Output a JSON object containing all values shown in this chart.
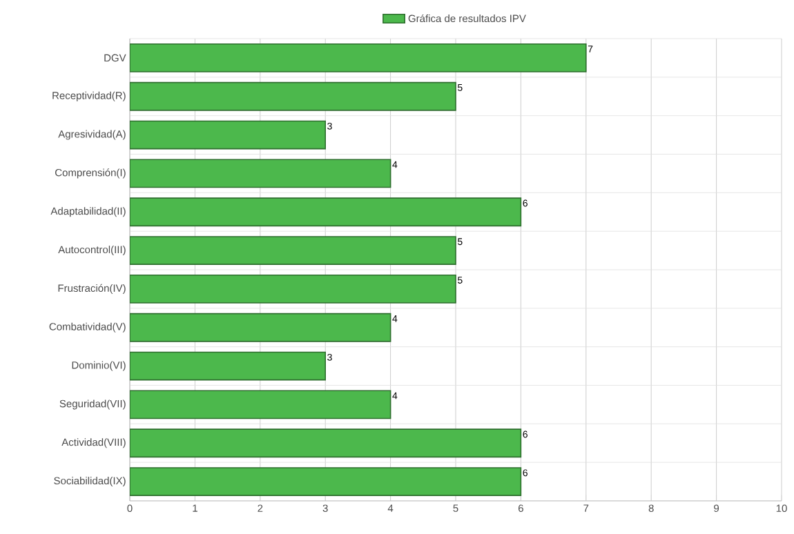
{
  "chart_data": {
    "type": "bar",
    "orientation": "horizontal",
    "categories": [
      "DGV",
      "Receptividad(R)",
      "Agresividad(A)",
      "Comprensión(I)",
      "Adaptabilidad(II)",
      "Autocontrol(III)",
      "Frustración(IV)",
      "Combatividad(V)",
      "Dominio(VI)",
      "Seguridad(VII)",
      "Actividad(VIII)",
      "Sociabilidad(IX)"
    ],
    "series": [
      {
        "name": "Gráfica de resultados IPV",
        "color": "#4cb84c",
        "values": [
          7,
          5,
          3,
          4,
          6,
          5,
          5,
          4,
          3,
          4,
          6,
          6
        ]
      }
    ],
    "xlim": [
      0,
      10
    ],
    "xticks": [
      0,
      1,
      2,
      3,
      4,
      5,
      6,
      7,
      8,
      9,
      10
    ],
    "grid": true,
    "legend": "top",
    "data_labels": true
  }
}
